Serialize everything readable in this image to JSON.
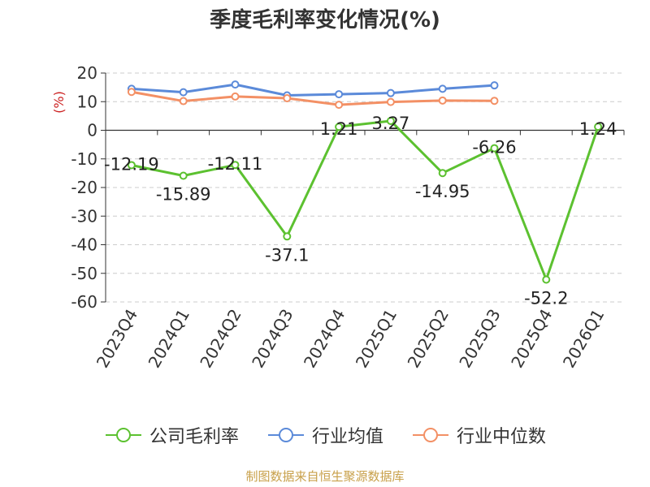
{
  "chart_data": {
    "type": "line",
    "title": "季度毛利率变化情况(%)",
    "ylabel": "(%)",
    "xlabel": "",
    "ylim": [
      -60,
      20
    ],
    "yticks": [
      20,
      10,
      0,
      -10,
      -20,
      -30,
      -40,
      -50,
      -60
    ],
    "categories": [
      "2023Q4",
      "2024Q1",
      "2024Q2",
      "2024Q3",
      "2024Q4",
      "2025Q1",
      "2025Q2",
      "2025Q3",
      "2025Q4",
      "2026Q1"
    ],
    "grid": true,
    "legend_position": "bottom",
    "series": [
      {
        "name": "公司毛利率",
        "color": "#5cc130",
        "values": [
          -12.19,
          -15.89,
          -12.11,
          -37.1,
          1.21,
          3.27,
          -14.95,
          -6.26,
          -52.2,
          1.24
        ],
        "labels": [
          "-12.19",
          "-15.89",
          "-12.11",
          "-37.1",
          "1.21",
          "3.27",
          "-14.95",
          "-6.26",
          "-52.2",
          "1.24"
        ]
      },
      {
        "name": "行业均值",
        "color": "#5b8ad9",
        "values": [
          14.5,
          13.3,
          16.0,
          12.2,
          12.6,
          13.0,
          14.5,
          15.7,
          null,
          null
        ]
      },
      {
        "name": "行业中位数",
        "color": "#f39065",
        "values": [
          13.4,
          10.2,
          11.8,
          11.2,
          8.9,
          9.9,
          10.4,
          10.3,
          null,
          null
        ]
      }
    ]
  },
  "source": "制图数据来自恒生聚源数据库"
}
